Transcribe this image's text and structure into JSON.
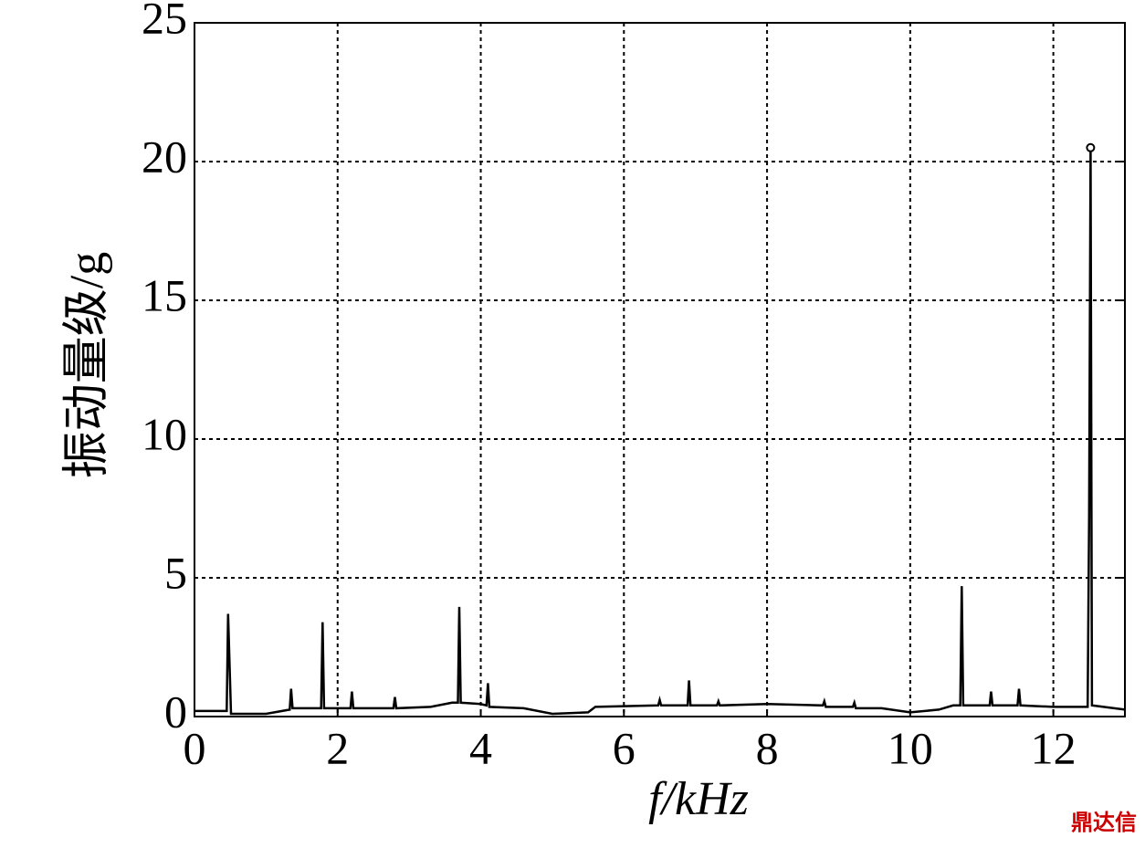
{
  "chart_data": {
    "type": "line",
    "xlabel": "f/kHz",
    "ylabel": "振动量级/g",
    "watermark": "鼎达信",
    "xlim": [
      0,
      13
    ],
    "ylim": [
      0,
      25
    ],
    "xticks": [
      0,
      2,
      4,
      6,
      8,
      10,
      12
    ],
    "yticks": [
      0,
      5,
      10,
      15,
      20,
      25
    ],
    "grid": true,
    "peak_marker": true,
    "series": [
      {
        "color": "#000000",
        "x": [
          0,
          0.45,
          0.47,
          0.49,
          0.51,
          1.0,
          1.33,
          1.35,
          1.37,
          1.77,
          1.79,
          1.81,
          2.18,
          2.2,
          2.22,
          2.78,
          2.8,
          2.82,
          3.3,
          3.6,
          3.68,
          3.7,
          3.72,
          4.0,
          4.08,
          4.1,
          4.12,
          4.6,
          5.0,
          5.5,
          5.6,
          6.48,
          6.5,
          6.52,
          6.89,
          6.91,
          6.93,
          7.3,
          7.32,
          7.34,
          8.0,
          8.78,
          8.8,
          8.82,
          9.2,
          9.22,
          9.24,
          9.6,
          10.0,
          10.4,
          10.6,
          10.7,
          10.72,
          10.74,
          11.11,
          11.13,
          11.15,
          11.5,
          11.52,
          11.54,
          12.0,
          12.48,
          12.5,
          12.52,
          12.54,
          13
        ],
        "values": [
          0.2,
          0.2,
          3.7,
          1.9,
          0.1,
          0.1,
          0.25,
          1.0,
          0.3,
          0.3,
          3.4,
          0.3,
          0.3,
          0.9,
          0.3,
          0.3,
          0.7,
          0.3,
          0.35,
          0.5,
          0.5,
          3.95,
          0.5,
          0.45,
          0.4,
          1.2,
          0.35,
          0.3,
          0.1,
          0.15,
          0.35,
          0.4,
          0.6,
          0.4,
          0.4,
          1.3,
          0.4,
          0.4,
          0.55,
          0.4,
          0.45,
          0.4,
          0.55,
          0.35,
          0.35,
          0.5,
          0.3,
          0.3,
          0.15,
          0.25,
          0.4,
          0.4,
          4.7,
          0.4,
          0.4,
          0.9,
          0.4,
          0.4,
          1.0,
          0.4,
          0.35,
          0.35,
          7.2,
          20.5,
          0.4,
          0.25
        ]
      }
    ]
  }
}
